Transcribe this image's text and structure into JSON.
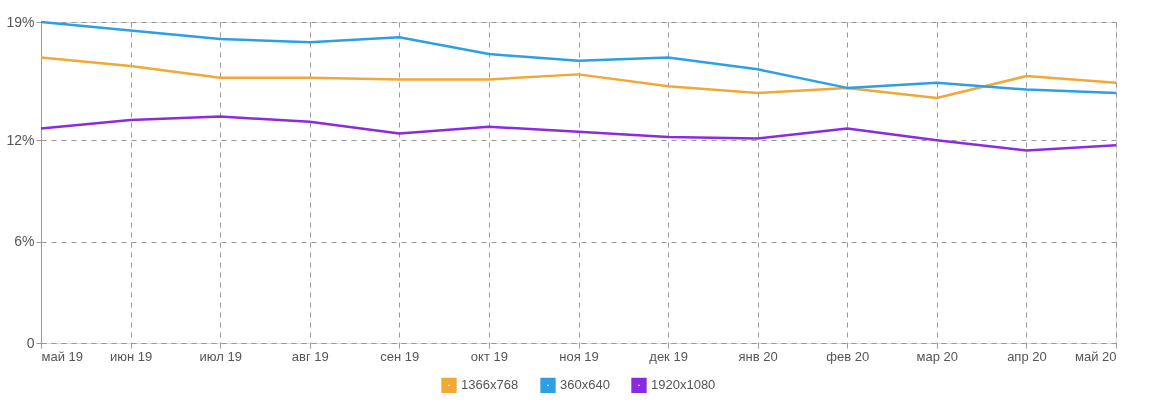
{
  "chart_data": {
    "type": "line",
    "categories": [
      "май 19",
      "июн 19",
      "июл 19",
      "авг 19",
      "сен 19",
      "окт 19",
      "ноя 19",
      "дек 19",
      "янв 20",
      "фев 20",
      "мар 20",
      "апр 20",
      "май 20"
    ],
    "series": [
      {
        "name": "1366x768",
        "color": "#f0a838",
        "values": [
          16.9,
          16.4,
          15.7,
          15.7,
          15.6,
          15.6,
          15.9,
          15.2,
          14.8,
          15.1,
          14.5,
          15.8,
          15.4
        ]
      },
      {
        "name": "360x640",
        "color": "#2f9fe4",
        "values": [
          19.0,
          18.5,
          18.0,
          17.8,
          18.1,
          17.1,
          16.7,
          16.9,
          16.2,
          15.1,
          15.4,
          15.0,
          14.8
        ]
      },
      {
        "name": "1920x1080",
        "color": "#8a2be2",
        "values": [
          12.7,
          13.2,
          13.4,
          13.1,
          12.4,
          12.8,
          12.5,
          12.2,
          12.1,
          12.7,
          12.0,
          11.4,
          11.7
        ]
      }
    ],
    "ylim": [
      0,
      19
    ],
    "yticks": [
      0,
      {
        "value": 6,
        "label": "6%"
      },
      {
        "value": 12,
        "label": "12%"
      },
      {
        "value": 19,
        "label": "19%"
      }
    ],
    "grid": true,
    "legend": "bottom",
    "marker": "none",
    "line_style": "solid"
  }
}
